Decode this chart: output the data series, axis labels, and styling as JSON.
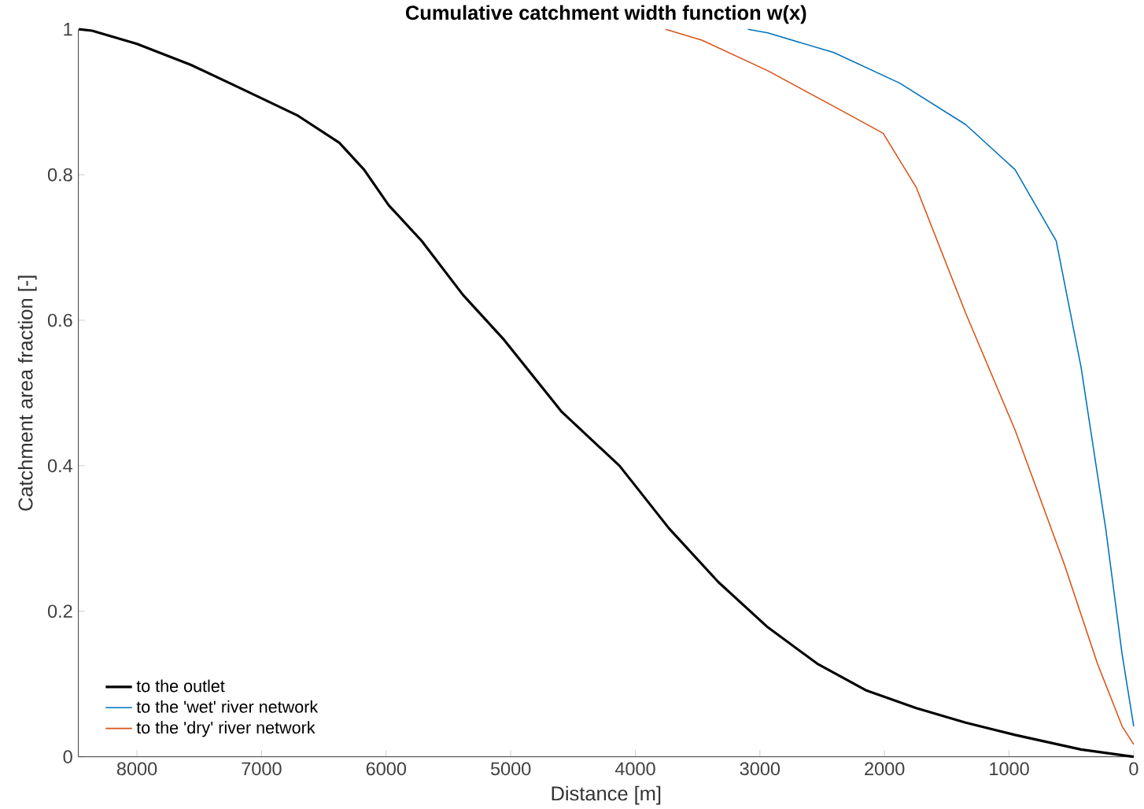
{
  "chart_data": {
    "type": "line",
    "title": "Cumulative catchment width function w(x)",
    "xlabel": "Distance [m]",
    "ylabel": "Catchment area fraction [-]",
    "xlim": [
      8470,
      0
    ],
    "xticks": [
      8000,
      7000,
      6000,
      5000,
      4000,
      3000,
      2000,
      1000,
      0
    ],
    "ylim": [
      0,
      1
    ],
    "yticks": [
      0,
      0.2,
      0.4,
      0.6,
      0.8,
      1
    ],
    "legend": "bottom left",
    "grid": false,
    "series": [
      {
        "name": "to the outlet",
        "color": "#000000",
        "x": [
          8466,
          8360,
          8000,
          7566,
          7169,
          6706,
          6376,
          6177,
          5979,
          5714,
          5384,
          5053,
          4590,
          4127,
          3730,
          3333,
          2937,
          2540,
          2143,
          1746,
          1349,
          952,
          423,
          0
        ],
        "values": [
          1.0,
          0.998,
          0.98,
          0.951,
          0.919,
          0.881,
          0.844,
          0.807,
          0.758,
          0.709,
          0.635,
          0.573,
          0.474,
          0.4,
          0.314,
          0.24,
          0.178,
          0.128,
          0.091,
          0.067,
          0.047,
          0.03,
          0.01,
          0.0
        ]
      },
      {
        "name": "to the 'wet' river network",
        "color": "#0072bd",
        "x": [
          3095,
          2937,
          2407,
          1878,
          1349,
          952,
          622,
          423,
          225,
          93,
          0
        ],
        "values": [
          1.0,
          0.995,
          0.968,
          0.926,
          0.869,
          0.807,
          0.709,
          0.536,
          0.314,
          0.141,
          0.042
        ]
      },
      {
        "name": "to the 'dry' river network",
        "color": "#d95319",
        "x": [
          3757,
          3466,
          2937,
          2407,
          2011,
          1746,
          1349,
          952,
          556,
          291,
          93,
          0
        ],
        "values": [
          1.0,
          0.985,
          0.943,
          0.894,
          0.857,
          0.783,
          0.61,
          0.449,
          0.264,
          0.128,
          0.042,
          0.017
        ]
      }
    ]
  }
}
